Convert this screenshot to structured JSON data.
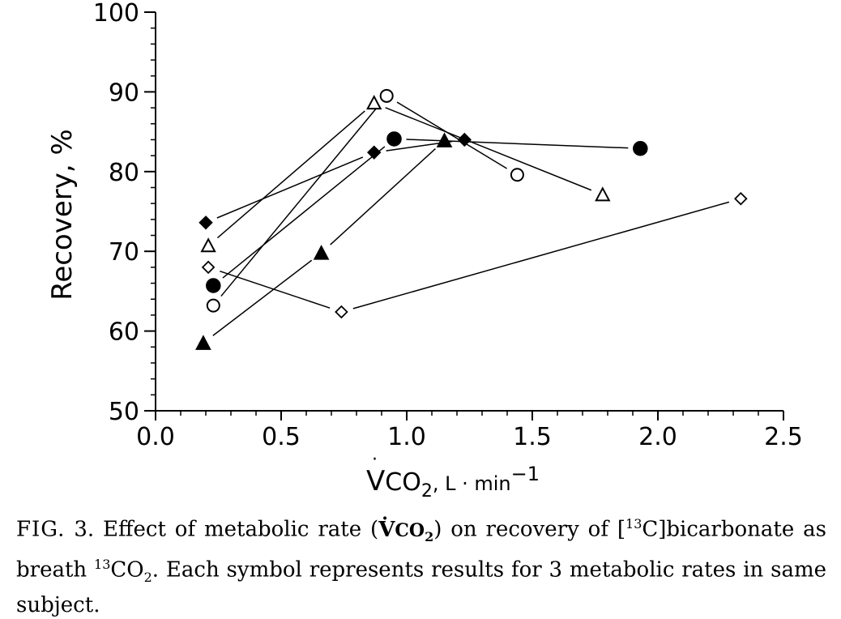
{
  "chart_data": {
    "type": "scatter",
    "x_axis": {
      "label_main": "V",
      "label_sub": "CO",
      "label_sub2": "2",
      "label_unit": ",  L · min",
      "label_exp": "−1",
      "range": [
        0.0,
        2.5
      ],
      "ticks": [
        0.0,
        0.5,
        1.0,
        1.5,
        2.0,
        2.5
      ],
      "tick_labels": [
        "0.0",
        "0.5",
        "1.0",
        "1.5",
        "2.0",
        "2.5"
      ]
    },
    "y_axis": {
      "label": "Recovery,  %",
      "range": [
        50,
        100
      ],
      "ticks": [
        50,
        60,
        70,
        80,
        90,
        100
      ],
      "tick_labels": [
        "50",
        "60",
        "70",
        "80",
        "90",
        "100"
      ]
    },
    "grid": false,
    "series": [
      {
        "marker": "filled-circle",
        "x": [
          0.23,
          0.95,
          1.93
        ],
        "y": [
          65.7,
          84.1,
          82.9
        ]
      },
      {
        "marker": "open-circle",
        "x": [
          0.23,
          0.92,
          1.44
        ],
        "y": [
          63.2,
          89.5,
          79.6
        ]
      },
      {
        "marker": "open-triangle",
        "x": [
          0.21,
          0.87,
          1.78
        ],
        "y": [
          70.7,
          88.6,
          77.1
        ]
      },
      {
        "marker": "filled-triangle",
        "x": [
          0.19,
          0.66,
          1.15
        ],
        "y": [
          58.5,
          69.8,
          83.9
        ]
      },
      {
        "marker": "filled-diamond",
        "x": [
          0.2,
          0.87,
          1.23
        ],
        "y": [
          73.6,
          82.4,
          84.0
        ]
      },
      {
        "marker": "open-diamond",
        "x": [
          0.21,
          0.74,
          2.33
        ],
        "y": [
          68.0,
          62.4,
          76.6
        ]
      }
    ]
  },
  "caption": {
    "fig_label": "FIG.",
    "fig_number": "3.",
    "line1_a": "Effect of metabolic rate (",
    "vco2_v": "V",
    "vco2_co": "CO",
    "vco2_sub": "2",
    "line1_b": ") on recovery of [",
    "sup13a": "13",
    "line1_c": "C]bicarbonate as breath ",
    "sup13b": "13",
    "co2_main": "CO",
    "co2_sub": "2",
    "line_rest": ". Each symbol represents results for 3 metabolic rates in same subject."
  }
}
